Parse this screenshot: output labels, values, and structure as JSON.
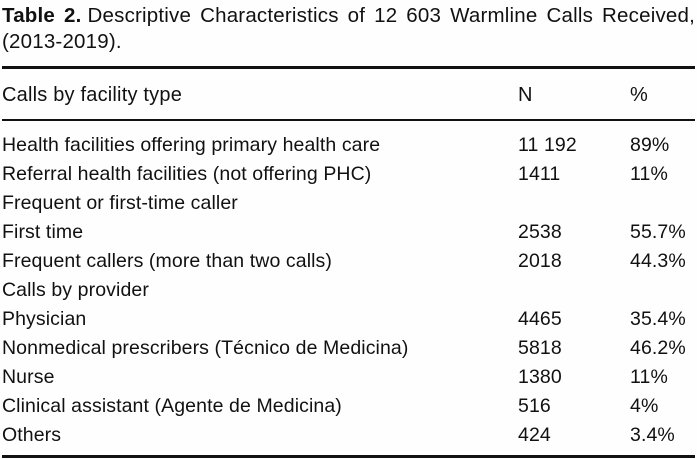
{
  "table": {
    "title_label": "Table 2.",
    "title_text": "Descriptive Characteristics of 12 603 Warmline Calls Received, (2013-2019).",
    "columns": {
      "label": "Calls by facility type",
      "n": "N",
      "pct": "%"
    },
    "rows": [
      {
        "label": "Health facilities offering primary health care",
        "n": "11 192",
        "pct": "89%"
      },
      {
        "label": "Referral health facilities (not offering PHC)",
        "n": "1411",
        "pct": "11%"
      },
      {
        "label": "Frequent or first-time caller",
        "n": "",
        "pct": ""
      },
      {
        "label": "First time",
        "n": "2538",
        "pct": "55.7%"
      },
      {
        "label": "Frequent callers (more than two calls)",
        "n": "2018",
        "pct": "44.3%"
      },
      {
        "label": "Calls by provider",
        "n": "",
        "pct": ""
      },
      {
        "label": "Physician",
        "n": "4465",
        "pct": "35.4%"
      },
      {
        "label": "Nonmedical prescribers (Técnico de Medicina)",
        "n": "5818",
        "pct": "46.2%"
      },
      {
        "label": "Nurse",
        "n": "1380",
        "pct": "11%"
      },
      {
        "label": "Clinical assistant (Agente de Medicina)",
        "n": "516",
        "pct": "4%"
      },
      {
        "label": "Others",
        "n": "424",
        "pct": "3.4%"
      }
    ]
  }
}
